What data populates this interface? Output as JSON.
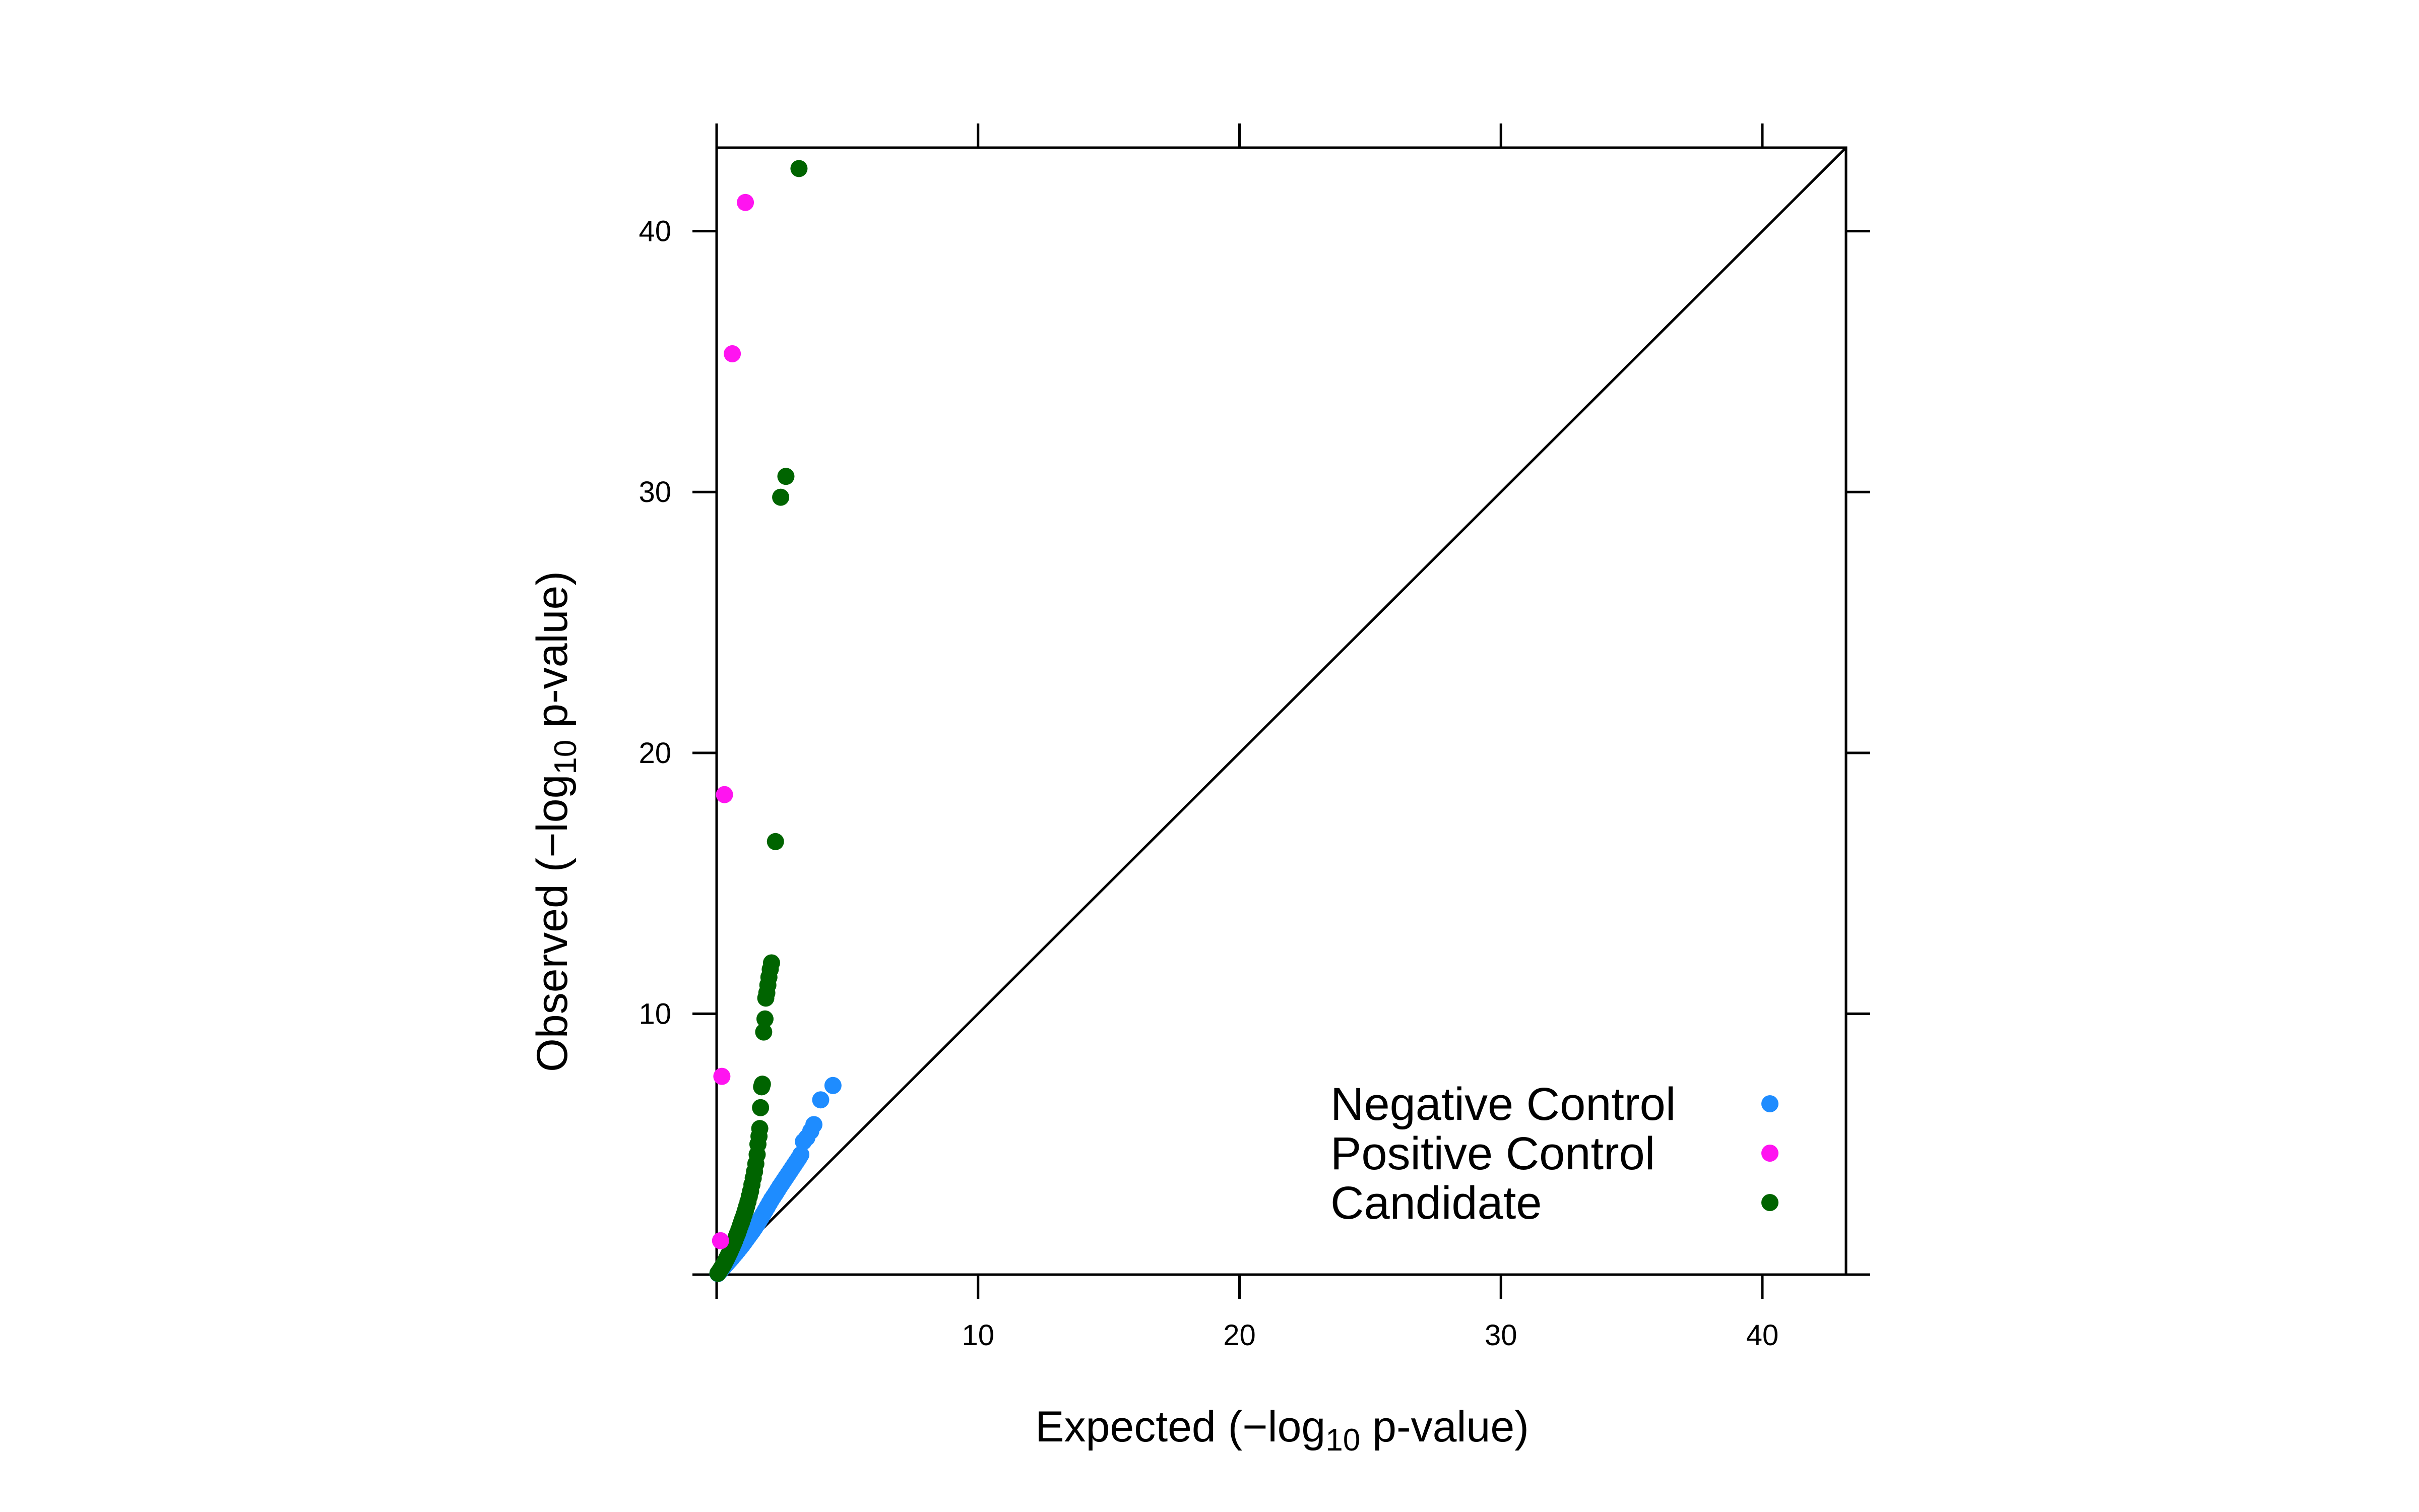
{
  "chart_data": {
    "type": "scatter",
    "xlabel": "Expected (−log10 p-value)",
    "ylabel": "Observed (−log10 p-value)",
    "xlim": [
      0,
      43.2
    ],
    "ylim": [
      0,
      43.2
    ],
    "xticks": [
      10,
      20,
      30,
      40
    ],
    "yticks": [
      10,
      20,
      30,
      40
    ],
    "reference_line": "y = x",
    "grid": false,
    "legend_position": "bottom-right",
    "colors": {
      "Negative Control": "#1E8CFF",
      "Positive Control": "#FF14F0",
      "Candidate": "#006400"
    },
    "series": [
      {
        "name": "Negative Control",
        "points": [
          [
            0.05,
            0.04
          ],
          [
            0.1,
            0.1
          ],
          [
            0.15,
            0.16
          ],
          [
            0.2,
            0.22
          ],
          [
            0.28,
            0.3
          ],
          [
            0.35,
            0.38
          ],
          [
            0.42,
            0.46
          ],
          [
            0.5,
            0.55
          ],
          [
            0.58,
            0.64
          ],
          [
            0.66,
            0.74
          ],
          [
            0.74,
            0.83
          ],
          [
            0.82,
            0.93
          ],
          [
            0.9,
            1.03
          ],
          [
            0.98,
            1.13
          ],
          [
            1.06,
            1.24
          ],
          [
            1.14,
            1.35
          ],
          [
            1.22,
            1.46
          ],
          [
            1.3,
            1.57
          ],
          [
            1.38,
            1.68
          ],
          [
            1.46,
            1.8
          ],
          [
            1.54,
            1.92
          ],
          [
            1.62,
            2.05
          ],
          [
            1.7,
            2.18
          ],
          [
            1.78,
            2.32
          ],
          [
            1.86,
            2.46
          ],
          [
            1.94,
            2.6
          ],
          [
            2.02,
            2.74
          ],
          [
            2.1,
            2.88
          ],
          [
            2.18,
            3.0
          ],
          [
            2.26,
            3.12
          ],
          [
            2.34,
            3.25
          ],
          [
            2.42,
            3.38
          ],
          [
            2.5,
            3.5
          ],
          [
            2.58,
            3.62
          ],
          [
            2.66,
            3.74
          ],
          [
            2.74,
            3.86
          ],
          [
            2.82,
            3.98
          ],
          [
            2.9,
            4.1
          ],
          [
            2.98,
            4.22
          ],
          [
            3.06,
            4.34
          ],
          [
            3.14,
            4.46
          ],
          [
            3.22,
            4.6
          ],
          [
            3.32,
            5.1
          ],
          [
            3.45,
            5.25
          ],
          [
            3.6,
            5.5
          ],
          [
            3.72,
            5.75
          ],
          [
            3.98,
            6.7
          ],
          [
            4.45,
            7.25
          ]
        ]
      },
      {
        "name": "Positive Control",
        "points": [
          [
            0.15,
            1.3
          ],
          [
            0.2,
            7.6
          ],
          [
            0.3,
            18.4
          ],
          [
            0.6,
            35.3
          ],
          [
            1.1,
            41.1
          ]
        ]
      },
      {
        "name": "Candidate",
        "points": [
          [
            0.05,
            0.05
          ],
          [
            0.1,
            0.12
          ],
          [
            0.15,
            0.2
          ],
          [
            0.2,
            0.28
          ],
          [
            0.25,
            0.36
          ],
          [
            0.3,
            0.45
          ],
          [
            0.35,
            0.55
          ],
          [
            0.4,
            0.65
          ],
          [
            0.45,
            0.75
          ],
          [
            0.5,
            0.86
          ],
          [
            0.55,
            0.97
          ],
          [
            0.6,
            1.08
          ],
          [
            0.65,
            1.2
          ],
          [
            0.7,
            1.32
          ],
          [
            0.75,
            1.45
          ],
          [
            0.8,
            1.58
          ],
          [
            0.85,
            1.72
          ],
          [
            0.9,
            1.86
          ],
          [
            0.95,
            2.0
          ],
          [
            1.0,
            2.15
          ],
          [
            1.05,
            2.3
          ],
          [
            1.1,
            2.45
          ],
          [
            1.15,
            2.62
          ],
          [
            1.2,
            2.8
          ],
          [
            1.25,
            3.0
          ],
          [
            1.3,
            3.2
          ],
          [
            1.35,
            3.45
          ],
          [
            1.4,
            3.7
          ],
          [
            1.45,
            3.95
          ],
          [
            1.5,
            4.25
          ],
          [
            1.55,
            4.6
          ],
          [
            1.58,
            5.0
          ],
          [
            1.62,
            5.3
          ],
          [
            1.65,
            5.6
          ],
          [
            1.68,
            6.4
          ],
          [
            1.72,
            7.2
          ],
          [
            1.75,
            7.3
          ],
          [
            1.8,
            9.3
          ],
          [
            1.85,
            9.8
          ],
          [
            1.88,
            10.6
          ],
          [
            1.92,
            10.8
          ],
          [
            1.96,
            11.1
          ],
          [
            2.0,
            11.4
          ],
          [
            2.05,
            11.7
          ],
          [
            2.1,
            11.95
          ],
          [
            2.25,
            16.6
          ],
          [
            2.45,
            29.8
          ],
          [
            2.65,
            30.6
          ],
          [
            3.15,
            42.4
          ]
        ]
      }
    ]
  }
}
